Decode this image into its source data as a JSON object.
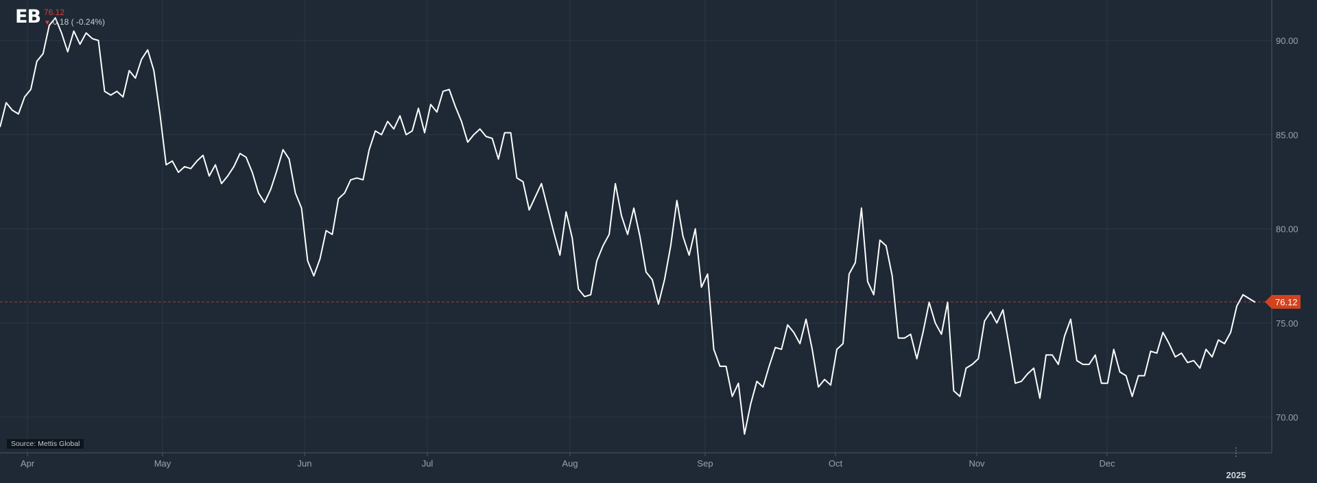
{
  "header": {
    "logo": "EB",
    "last_price": "76.12",
    "change": "0.18 ( -0.24%)",
    "direction_icon": "down-triangle-icon"
  },
  "source": "Source: Mettis Global",
  "colors": {
    "background": "#1e2935",
    "line": "#ffffff",
    "grid": "#2b3846",
    "accent_down": "#d2421f",
    "price_line": "#b53a2a"
  },
  "chart_data": {
    "type": "line",
    "series": [
      {
        "values": [
          85.4,
          86.7,
          86.3,
          86.1,
          87,
          87.4,
          88.9,
          89.3,
          90.8,
          91.2,
          90.4,
          89.4,
          90.5,
          89.8,
          90.4,
          90.1,
          90,
          87.3,
          87.1,
          87.3,
          87,
          88.4,
          88,
          89,
          89.5,
          88.4,
          86.1,
          83.4,
          83.6,
          83,
          83.3,
          83.2,
          83.6,
          83.9,
          82.8,
          83.4,
          82.4,
          82.8,
          83.3,
          84,
          83.8,
          83,
          81.9,
          81.4,
          82.1,
          83.1,
          84.2,
          83.7,
          81.9,
          81.1,
          78.3,
          77.5,
          78.4,
          79.9,
          79.7,
          81.6,
          81.9,
          82.6,
          82.7,
          82.6,
          84.2,
          85.2,
          85,
          85.7,
          85.3,
          86,
          85,
          85.2,
          86.4,
          85.1,
          86.6,
          86.2,
          87.3,
          87.4,
          86.5,
          85.7,
          84.6,
          85,
          85.3,
          84.9,
          84.8,
          83.7,
          85.1,
          85.1,
          82.7,
          82.5,
          81,
          81.7,
          82.4,
          81.1,
          79.8,
          78.6,
          80.9,
          79.5,
          76.8,
          76.4,
          76.5,
          78.3,
          79.1,
          79.7,
          82.4,
          80.7,
          79.7,
          81.1,
          79.6,
          77.7,
          77.3,
          76,
          77.3,
          79.1,
          81.5,
          79.6,
          78.6,
          80,
          76.9,
          77.6,
          73.6,
          72.7,
          72.7,
          71.1,
          71.8,
          69.1,
          70.7,
          71.9,
          71.6,
          72.7,
          73.7,
          73.6,
          74.9,
          74.5,
          73.9,
          75.2,
          73.6,
          71.6,
          72,
          71.7,
          73.6,
          73.9,
          77.6,
          78.2,
          81.1,
          77.2,
          76.5,
          79.4,
          79.1,
          77.5,
          74.2,
          74.2,
          74.4,
          73.1,
          74.5,
          76.1,
          75,
          74.4,
          76.1,
          71.4,
          71.1,
          72.6,
          72.8,
          73.1,
          75.1,
          75.6,
          75,
          75.7,
          73.8,
          71.8,
          71.9,
          72.3,
          72.6,
          71,
          73.3,
          73.3,
          72.8,
          74.3,
          75.2,
          73,
          72.8,
          72.8,
          73.3,
          71.8,
          71.8,
          73.6,
          72.4,
          72.2,
          71.1,
          72.2,
          72.2,
          73.5,
          73.4,
          74.5,
          73.9,
          73.2,
          73.4,
          72.9,
          73,
          72.6,
          73.6,
          73.2,
          74.1,
          73.9,
          74.5,
          75.9,
          76.5,
          76.3,
          76.1
        ]
      }
    ],
    "x_labels": [
      "Apr",
      "May",
      "Jun",
      "Jul",
      "Aug",
      "Sep",
      "Oct",
      "Nov",
      "Dec"
    ],
    "year_label": "2025",
    "y_ticks": [
      70,
      75,
      80,
      85,
      90
    ],
    "y_tick_labels": [
      "70.00",
      "75.00",
      "80.00",
      "85.00",
      "90.00"
    ],
    "ylim": [
      67.9,
      92.1
    ],
    "last_value": 76.12,
    "last_value_label": "76.12",
    "grid": true
  }
}
